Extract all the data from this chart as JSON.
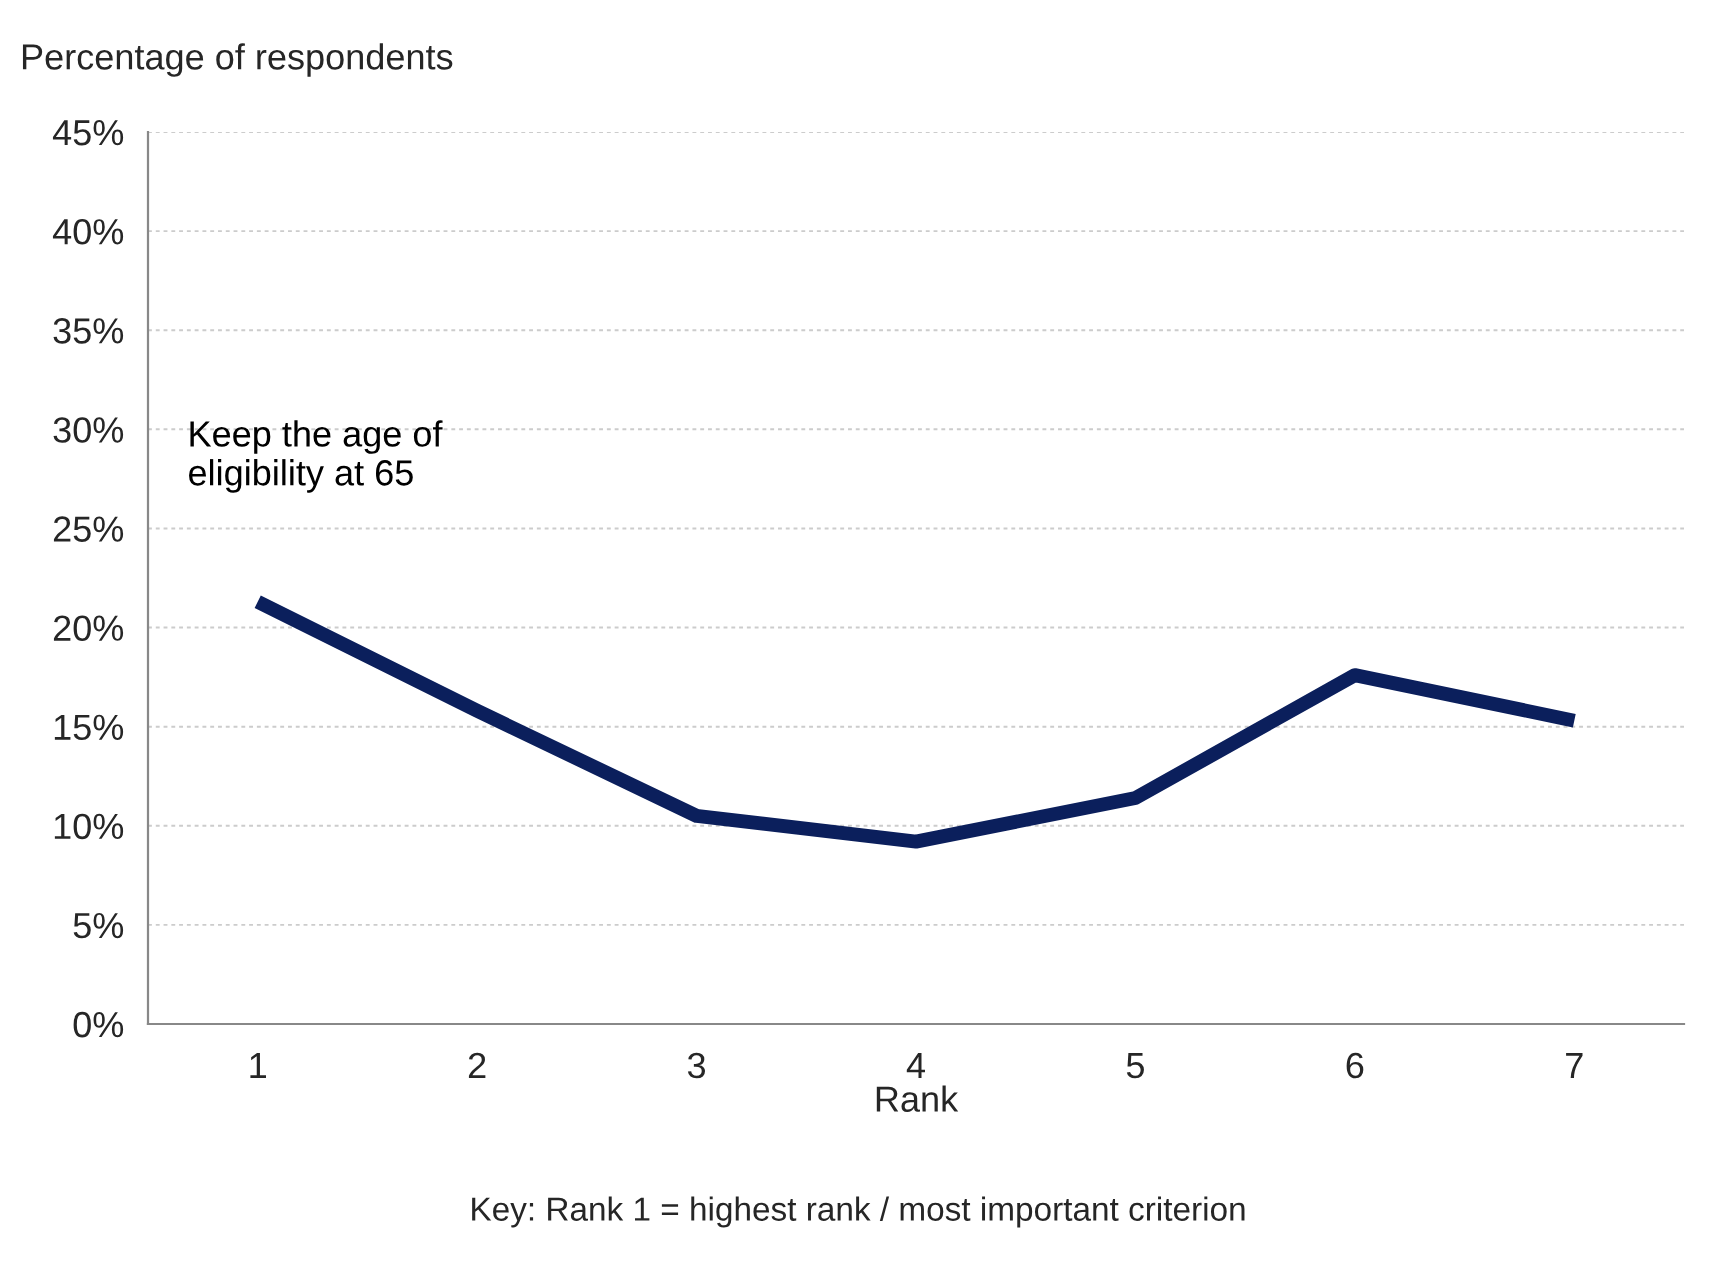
{
  "chart_data": {
    "type": "line",
    "ylabel": "Percentage of respondents",
    "xlabel": "Rank",
    "categories": [
      "1",
      "2",
      "3",
      "4",
      "5",
      "6",
      "7"
    ],
    "series": [
      {
        "name": "Keep the age of\neligibility at 65",
        "color": "#0b1f5c",
        "values": [
          21.3,
          15.8,
          10.5,
          9.2,
          11.4,
          17.6,
          15.3
        ]
      }
    ],
    "ylim": [
      0,
      45
    ],
    "yticks": [
      {
        "value": 0,
        "label": "0%"
      },
      {
        "value": 5,
        "label": "5%"
      },
      {
        "value": 10,
        "label": "10%"
      },
      {
        "value": 15,
        "label": "15%"
      },
      {
        "value": 20,
        "label": "20%"
      },
      {
        "value": 25,
        "label": "25%"
      },
      {
        "value": 30,
        "label": "30%"
      },
      {
        "value": 35,
        "label": "35%"
      },
      {
        "value": 40,
        "label": "40%"
      },
      {
        "value": 45,
        "label": "45%"
      }
    ],
    "grid": "y",
    "marker": "none",
    "line_style": "solid",
    "annotations": [
      "Key: Rank 1 = highest rank / most important criterion"
    ]
  }
}
